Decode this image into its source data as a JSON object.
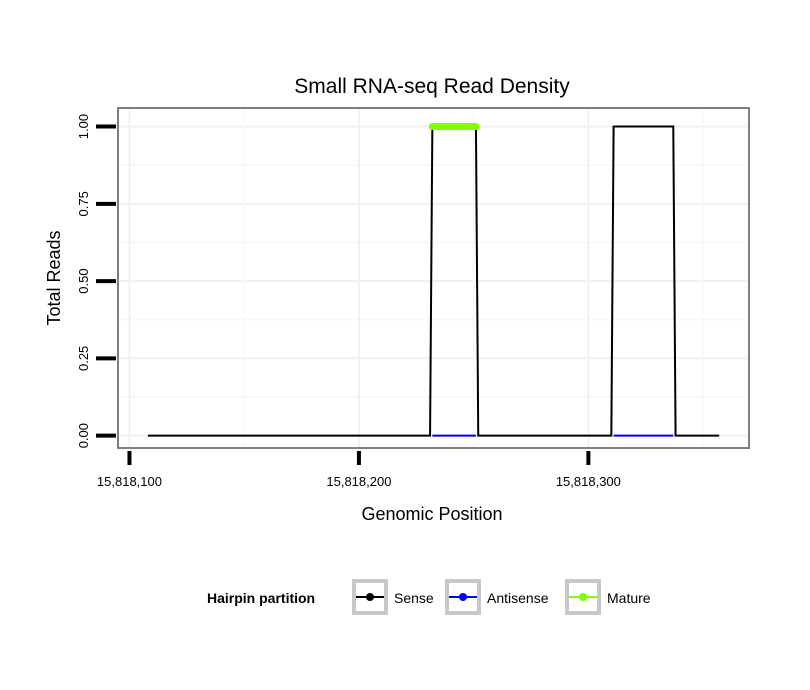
{
  "chart_data": {
    "type": "line",
    "title": "Small RNA-seq Read Density",
    "xlabel": "Genomic Position",
    "ylabel": "Total Reads",
    "xlim": [
      15818095,
      15818370
    ],
    "ylim": [
      -0.04,
      1.06
    ],
    "x_ticks": [
      15818100,
      15818200,
      15818300
    ],
    "x_tick_labels": [
      "15,818,100",
      "15,818,200",
      "15,818,300"
    ],
    "y_ticks": [
      0,
      0.25,
      0.5,
      0.75,
      1
    ],
    "y_tick_labels": [
      "0.00",
      "0.25",
      "0.50",
      "0.75",
      "1.00"
    ],
    "grid": true,
    "legend": {
      "title": "Hairpin partition",
      "placement": "bottom",
      "entries": [
        "Sense",
        "Antisense",
        "Mature"
      ]
    },
    "series": [
      {
        "name": "Sense",
        "color": "#000000",
        "x": [
          15818108,
          15818231,
          15818232,
          15818251,
          15818252,
          15818310,
          15818311,
          15818337,
          15818338,
          15818357
        ],
        "y": [
          0,
          0,
          1,
          1,
          0,
          0,
          1,
          1,
          0,
          0
        ]
      },
      {
        "name": "Antisense",
        "color": "#0000ff",
        "x": [
          15818232,
          15818251,
          15818311,
          15818337
        ],
        "y": [
          0,
          0,
          0,
          0
        ],
        "segments": [
          [
            0,
            1
          ],
          [
            2,
            3
          ]
        ]
      },
      {
        "name": "Mature",
        "color": "#7fff00",
        "x": [
          15818232,
          15818251
        ],
        "y": [
          1,
          1
        ]
      }
    ]
  }
}
